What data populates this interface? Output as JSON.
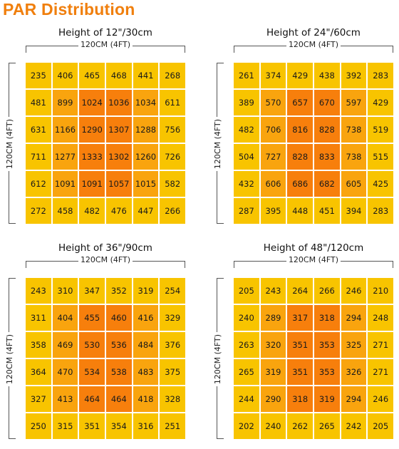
{
  "page_title": "PAR Distribution",
  "colors": {
    "title": "#f07f0d",
    "edge": "#f8c400",
    "inner": "#f9a40e",
    "center": "#f77f0c"
  },
  "chart_data": [
    {
      "type": "heatmap",
      "title": "Height of 12\"/30cm",
      "xlabel": "120CM (4FT)",
      "ylabel": "120CM (4FT)",
      "values": [
        [
          235,
          406,
          465,
          468,
          441,
          268
        ],
        [
          481,
          899,
          1024,
          1036,
          1034,
          611
        ],
        [
          631,
          1166,
          1290,
          1307,
          1288,
          756
        ],
        [
          711,
          1277,
          1333,
          1302,
          1260,
          726
        ],
        [
          612,
          1091,
          1091,
          1057,
          1015,
          582
        ],
        [
          272,
          458,
          482,
          476,
          447,
          266
        ]
      ]
    },
    {
      "type": "heatmap",
      "title": "Height of 24\"/60cm",
      "xlabel": "120CM (4FT)",
      "ylabel": "120CM (4FT)",
      "values": [
        [
          261,
          374,
          429,
          438,
          392,
          283
        ],
        [
          389,
          570,
          657,
          670,
          597,
          429
        ],
        [
          482,
          706,
          816,
          828,
          738,
          519
        ],
        [
          504,
          727,
          828,
          833,
          738,
          515
        ],
        [
          432,
          606,
          686,
          682,
          605,
          425
        ],
        [
          287,
          395,
          448,
          451,
          394,
          283
        ]
      ]
    },
    {
      "type": "heatmap",
      "title": "Height of 36\"/90cm",
      "xlabel": "120CM (4FT)",
      "ylabel": "120CM (4FT)",
      "values": [
        [
          243,
          310,
          347,
          352,
          319,
          254
        ],
        [
          311,
          404,
          455,
          460,
          416,
          329
        ],
        [
          358,
          469,
          530,
          536,
          484,
          376
        ],
        [
          364,
          470,
          534,
          538,
          483,
          375
        ],
        [
          327,
          413,
          464,
          464,
          418,
          328
        ],
        [
          250,
          315,
          351,
          354,
          316,
          251
        ]
      ]
    },
    {
      "type": "heatmap",
      "title": "Height of 48\"/120cm",
      "xlabel": "120CM (4FT)",
      "ylabel": "120CM (4FT)",
      "values": [
        [
          205,
          243,
          264,
          266,
          246,
          210
        ],
        [
          240,
          289,
          317,
          318,
          294,
          248
        ],
        [
          263,
          320,
          351,
          353,
          325,
          271
        ],
        [
          265,
          319,
          351,
          353,
          326,
          271
        ],
        [
          244,
          290,
          318,
          319,
          294,
          246
        ],
        [
          202,
          240,
          262,
          265,
          242,
          205
        ]
      ]
    }
  ]
}
